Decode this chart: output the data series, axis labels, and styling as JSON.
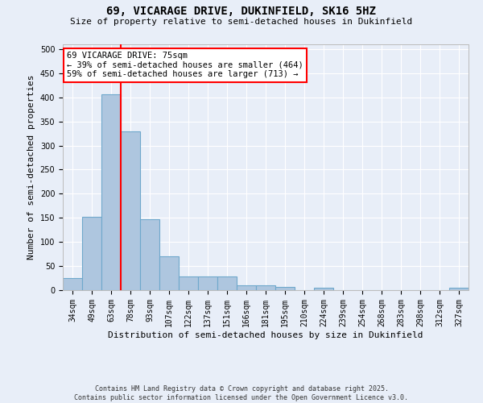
{
  "title1": "69, VICARAGE DRIVE, DUKINFIELD, SK16 5HZ",
  "title2": "Size of property relative to semi-detached houses in Dukinfield",
  "xlabel": "Distribution of semi-detached houses by size in Dukinfield",
  "ylabel": "Number of semi-detached properties",
  "categories": [
    "34sqm",
    "49sqm",
    "63sqm",
    "78sqm",
    "93sqm",
    "107sqm",
    "122sqm",
    "137sqm",
    "151sqm",
    "166sqm",
    "181sqm",
    "195sqm",
    "210sqm",
    "224sqm",
    "239sqm",
    "254sqm",
    "268sqm",
    "283sqm",
    "298sqm",
    "312sqm",
    "327sqm"
  ],
  "values": [
    25,
    153,
    407,
    330,
    147,
    70,
    28,
    28,
    28,
    10,
    10,
    6,
    0,
    5,
    0,
    0,
    0,
    0,
    0,
    0,
    5
  ],
  "bar_color": "#aec6df",
  "bar_edge_color": "#6fa8cc",
  "vline_x": 2.5,
  "vline_color": "red",
  "annotation_text": "69 VICARAGE DRIVE: 75sqm\n← 39% of semi-detached houses are smaller (464)\n59% of semi-detached houses are larger (713) →",
  "annotation_box_color": "white",
  "annotation_box_edge": "red",
  "background_color": "#e8eef8",
  "grid_color": "white",
  "footer": "Contains HM Land Registry data © Crown copyright and database right 2025.\nContains public sector information licensed under the Open Government Licence v3.0.",
  "ylim": [
    0,
    510
  ],
  "yticks": [
    0,
    50,
    100,
    150,
    200,
    250,
    300,
    350,
    400,
    450,
    500
  ],
  "title1_fontsize": 10,
  "title2_fontsize": 8,
  "xlabel_fontsize": 8,
  "ylabel_fontsize": 8,
  "tick_fontsize": 7,
  "footer_fontsize": 6,
  "annotation_fontsize": 7.5
}
